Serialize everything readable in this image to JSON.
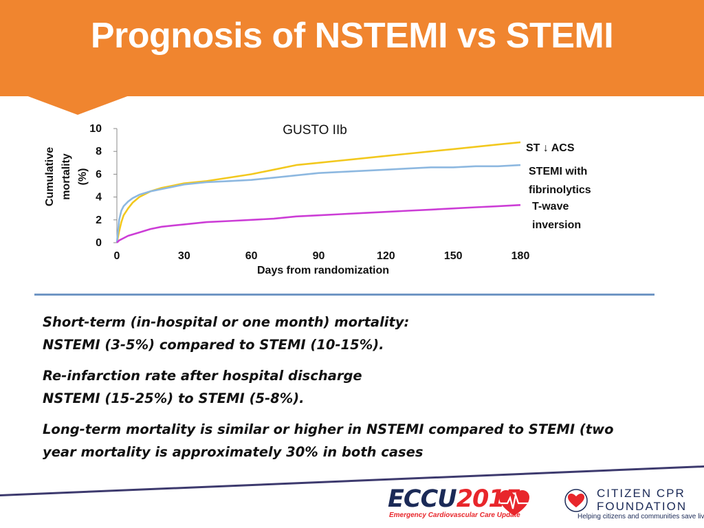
{
  "slide": {
    "title": "Prognosis of NSTEMI vs STEMI",
    "colors": {
      "header": "#F0852F",
      "divider": "#6F96C4",
      "footer_line": "#3D3A6E"
    }
  },
  "chart_data": {
    "type": "line",
    "title": "GUSTO IIb",
    "xlabel": "Days from randomization",
    "ylabel": "Cumulative mortality (%)",
    "ylabel_lines": [
      "Cumulative",
      "mortality",
      "(%)"
    ],
    "xlim": [
      0,
      180
    ],
    "ylim": [
      0,
      10
    ],
    "xticks": [
      0,
      30,
      60,
      90,
      120,
      150,
      180
    ],
    "yticks": [
      0,
      2,
      4,
      6,
      8,
      10
    ],
    "grid": false,
    "legend": "right-inline",
    "series": [
      {
        "name": "ST ↓ ACS",
        "label_lines": [
          "ST ↓ ACS"
        ],
        "color": "#F2C81E",
        "x": [
          0,
          1,
          2,
          3,
          5,
          7,
          10,
          15,
          20,
          25,
          30,
          40,
          50,
          60,
          70,
          80,
          90,
          100,
          110,
          120,
          130,
          140,
          150,
          160,
          170,
          180
        ],
        "y": [
          0,
          1.0,
          1.8,
          2.4,
          3.0,
          3.5,
          4.0,
          4.5,
          4.8,
          5.0,
          5.2,
          5.4,
          5.7,
          6.0,
          6.4,
          6.8,
          7.0,
          7.2,
          7.4,
          7.6,
          7.8,
          8.0,
          8.2,
          8.4,
          8.6,
          8.8
        ]
      },
      {
        "name": "STEMI with fibrinolytics",
        "label_lines": [
          "STEMI with",
          "fibrinolytics"
        ],
        "color": "#8DB8E0",
        "x": [
          0,
          1,
          2,
          3,
          5,
          7,
          10,
          15,
          20,
          25,
          30,
          40,
          50,
          60,
          70,
          80,
          90,
          100,
          110,
          120,
          130,
          140,
          150,
          160,
          170,
          180
        ],
        "y": [
          0,
          2.0,
          2.8,
          3.2,
          3.6,
          3.9,
          4.2,
          4.5,
          4.7,
          4.9,
          5.1,
          5.3,
          5.4,
          5.5,
          5.7,
          5.9,
          6.1,
          6.2,
          6.3,
          6.4,
          6.5,
          6.6,
          6.6,
          6.7,
          6.7,
          6.8
        ]
      },
      {
        "name": "T-wave inversion",
        "label_lines": [
          "T-wave",
          "inversion"
        ],
        "color": "#CC3DD6",
        "x": [
          0,
          1,
          3,
          5,
          10,
          15,
          20,
          30,
          40,
          50,
          60,
          70,
          80,
          90,
          100,
          110,
          120,
          130,
          140,
          150,
          160,
          170,
          180
        ],
        "y": [
          0,
          0.2,
          0.4,
          0.6,
          0.9,
          1.2,
          1.4,
          1.6,
          1.8,
          1.9,
          2.0,
          2.1,
          2.3,
          2.4,
          2.5,
          2.6,
          2.7,
          2.8,
          2.9,
          3.0,
          3.1,
          3.2,
          3.3
        ]
      }
    ]
  },
  "bullets": [
    {
      "lines": [
        "Short-term (in-hospital or one month) mortality:",
        "NSTEMI (3-5%) compared to STEMI (10-15%)."
      ]
    },
    {
      "lines": [
        "Re-infarction rate after hospital discharge",
        "NSTEMI (15-25%) to STEMI (5-8%)."
      ]
    },
    {
      "lines": [
        "Long-term mortality is similar or higher in NSTEMI compared to STEMI (two",
        "year mortality is approximately 30% in both cases"
      ]
    }
  ],
  "footer": {
    "ecc_logo": {
      "main": "ECCU",
      "year": "2015",
      "tagline": "Emergency Cardiovascular Care Update",
      "icon": "heart-ecg-icon"
    },
    "ccpr_logo": {
      "line1": "CITIZEN CPR",
      "line2": "FOUNDATION",
      "tagline": "Helping citizens and communities save lives",
      "icon": "heart-hands-icon"
    }
  }
}
